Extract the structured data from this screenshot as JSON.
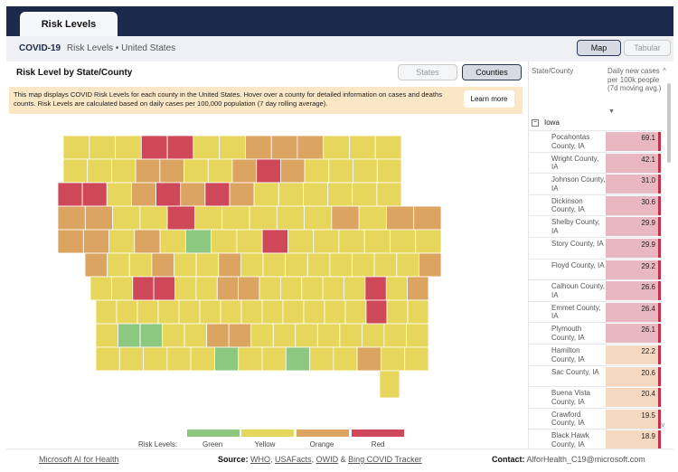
{
  "header": {
    "tab": "Risk Levels"
  },
  "titlebar": {
    "app": "COVID-19",
    "breadcrumb": "Risk Levels • United States"
  },
  "view_toggle": {
    "map": "Map",
    "tabular": "Tabular",
    "selected": "Map"
  },
  "panel": {
    "title": "Risk Level by State/County",
    "seg_states": "States",
    "seg_counties": "Counties",
    "selected_seg": "Counties"
  },
  "info": {
    "text": "This map displays COVID Risk Levels for each county in the United States. Hover over a county for detailed information on cases and deaths counts. Risk Levels are calculated based on daily cases per 100,000 population (7 day rolling average).",
    "button": "Learn more"
  },
  "map": {
    "region": "Iowa",
    "colors": {
      "green": "#8cc880",
      "yellow": "#e6d75c",
      "orange": "#dba461",
      "red": "#cf4859"
    },
    "rows": [
      "YYYRRYYOOOYYY",
      "YYYOOYYOROYYYY",
      "RRYOROROYYYYYY",
      "OOYYRYYYYYOYOO",
      "OOYOYGYYRYYYYYY",
      "OYYOYYOYYYYYYYYO",
      "YYRRYYOOYYYYYRYO",
      "YYYYYYYYYYYYYRYY",
      "YGGYYOOYYYYYYYY",
      "YYYYYGYYGYYOYY"
    ]
  },
  "legend": {
    "title": "Risk Levels:",
    "items": [
      {
        "label": "Green",
        "color": "#8cc880"
      },
      {
        "label": "Yellow",
        "color": "#e6d75c"
      },
      {
        "label": "Orange",
        "color": "#dba461"
      },
      {
        "label": "Red",
        "color": "#cf4859"
      }
    ]
  },
  "table": {
    "col1": "State/County",
    "col2": "Daily new cases per 100k people (7d moving avg.)",
    "sort_icon": "▼",
    "group": "Iowa",
    "rows": [
      {
        "county": "Pocahontas County, IA",
        "value": "69.1",
        "color": "#e9b7c0"
      },
      {
        "county": "Wright County, IA",
        "value": "42.1",
        "color": "#e9b7c0"
      },
      {
        "county": "Johnson County, IA",
        "value": "31.0",
        "color": "#e9b7c0"
      },
      {
        "county": "Dickinson County, IA",
        "value": "30.6",
        "color": "#e9b7c0"
      },
      {
        "county": "Shelby County, IA",
        "value": "29.9",
        "color": "#e9b7c0"
      },
      {
        "county": "Story County, IA",
        "value": "29.9",
        "color": "#e9b7c0"
      },
      {
        "county": "Floyd County, IA",
        "value": "29.2",
        "color": "#e9b7c0"
      },
      {
        "county": "Calhoun County, IA",
        "value": "26.6",
        "color": "#e9b7c0"
      },
      {
        "county": "Emmet County, IA",
        "value": "26.4",
        "color": "#e9b7c0"
      },
      {
        "county": "Plymouth County, IA",
        "value": "26.1",
        "color": "#e9b7c0"
      },
      {
        "county": "Hamilton County, IA",
        "value": "22.2",
        "color": "#f4d8c0"
      },
      {
        "county": "Sac County, IA",
        "value": "20.6",
        "color": "#f4d8c0"
      },
      {
        "county": "Buena Vista County, IA",
        "value": "20.4",
        "color": "#f4d8c0"
      },
      {
        "county": "Crawford County, IA",
        "value": "19.5",
        "color": "#f4d8c0"
      },
      {
        "county": "Black Hawk County, IA",
        "value": "18.9",
        "color": "#f4d8c0"
      }
    ]
  },
  "footer": {
    "left": "Microsoft AI for Health",
    "source_label": "Source:",
    "source_1": "WHO",
    "source_2": "USAFacts",
    "source_3": "OWID",
    "source_and": "&",
    "source_4": "Bing COVID Tracker",
    "contact_label": "Contact:",
    "contact": "AlforHealth_C19@microsoft.com"
  }
}
